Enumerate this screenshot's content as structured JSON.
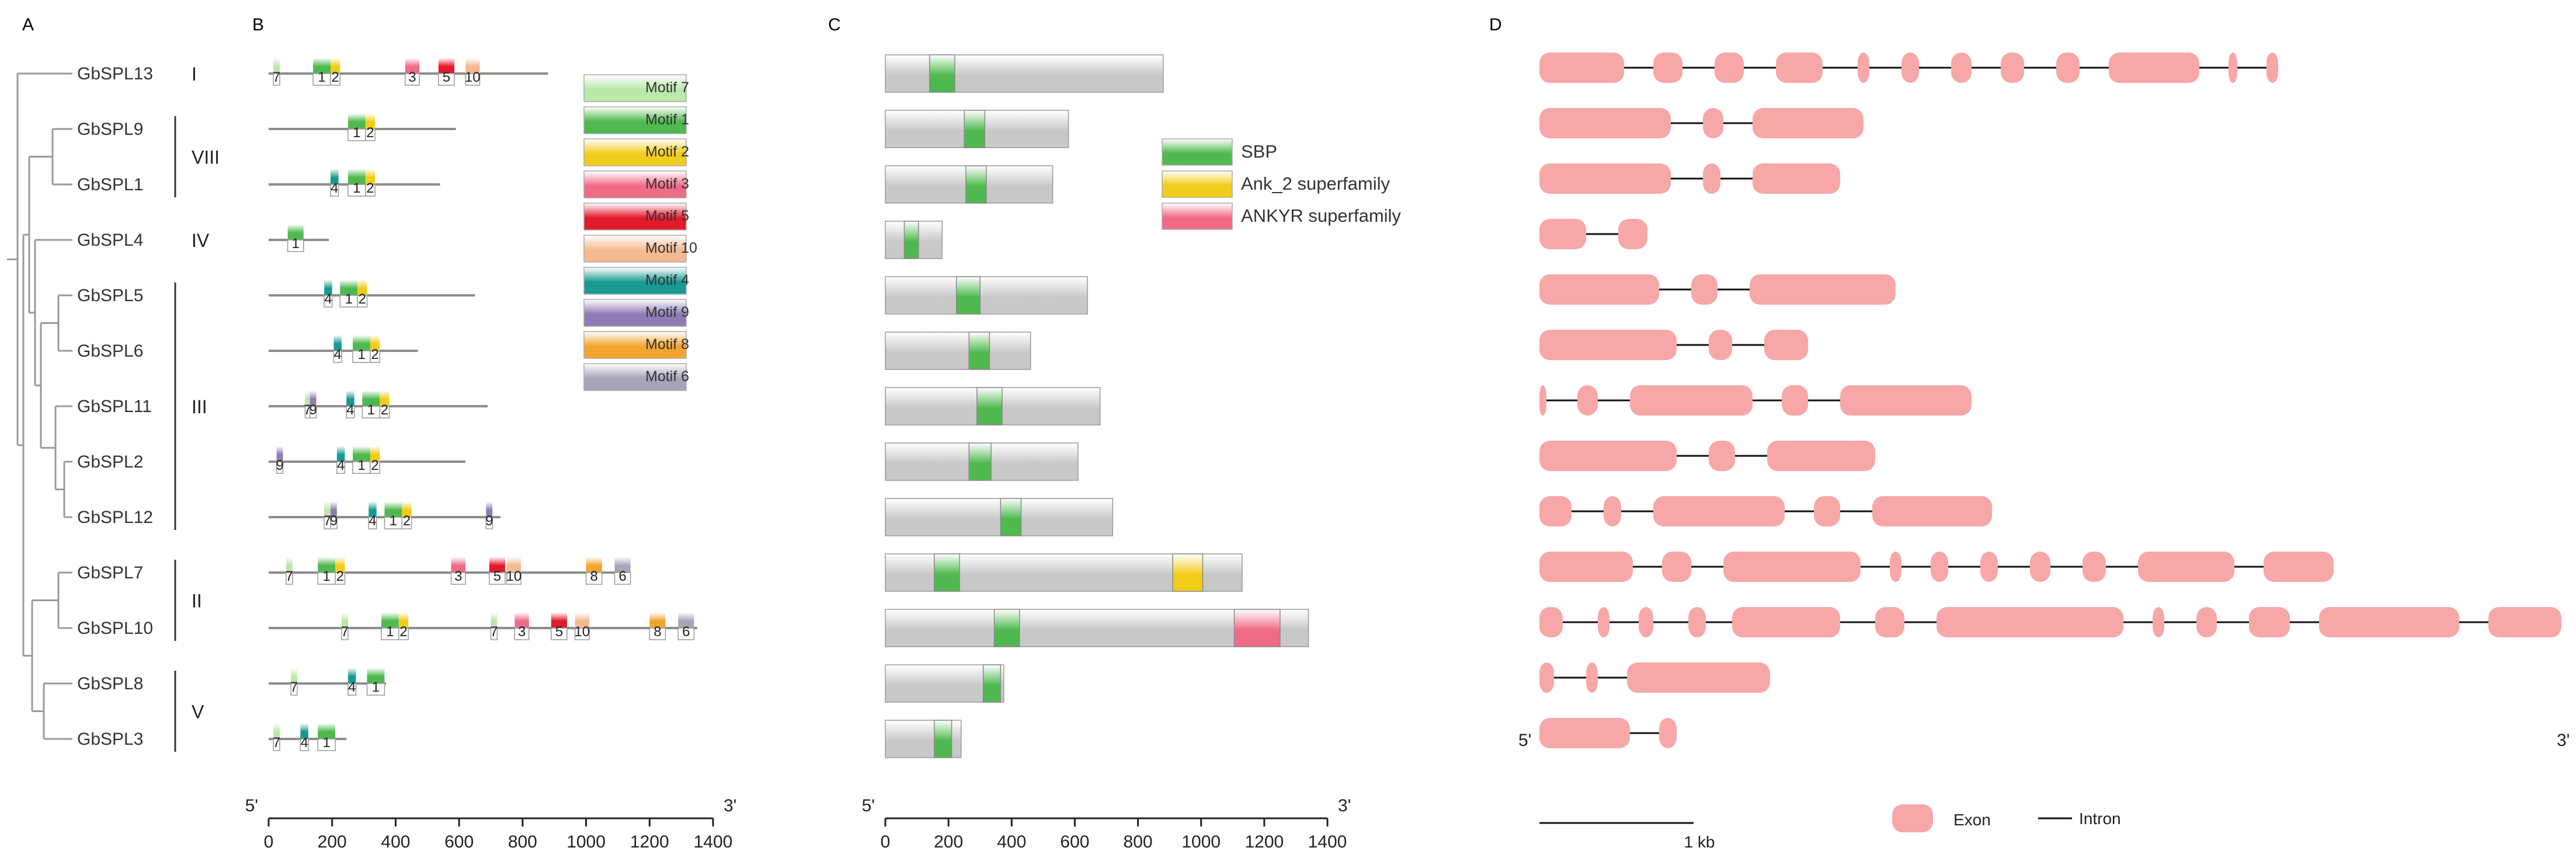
{
  "panels": {
    "a": "A",
    "b": "B",
    "c": "C",
    "d": "D"
  },
  "genes": [
    {
      "name": "GbSPL13",
      "len": 880,
      "motifs": [
        {
          "id": "7",
          "s": 15,
          "e": 35
        },
        {
          "id": "1",
          "s": 140,
          "e": 195
        },
        {
          "id": "2",
          "s": 195,
          "e": 225
        },
        {
          "id": "3",
          "s": 430,
          "e": 475
        },
        {
          "id": "5",
          "s": 535,
          "e": 585
        },
        {
          "id": "10",
          "s": 620,
          "e": 665
        }
      ],
      "domains": [
        {
          "t": "SBP",
          "s": 140,
          "e": 220
        }
      ],
      "prot_len": 880,
      "exons": [
        [
          0,
          145
        ],
        [
          195,
          245
        ],
        [
          300,
          350
        ],
        [
          405,
          485
        ],
        [
          545,
          565
        ],
        [
          620,
          650
        ],
        [
          705,
          740
        ],
        [
          790,
          830
        ],
        [
          885,
          925
        ],
        [
          975,
          1130
        ],
        [
          1180,
          1195
        ],
        [
          1245,
          1265
        ]
      ]
    },
    {
      "name": "GbSPL9",
      "len": 590,
      "motifs": [
        {
          "id": "1",
          "s": 250,
          "e": 305
        },
        {
          "id": "2",
          "s": 305,
          "e": 335
        }
      ],
      "domains": [
        {
          "t": "SBP",
          "s": 250,
          "e": 315
        }
      ],
      "prot_len": 580,
      "exons": [
        [
          0,
          225
        ],
        [
          280,
          315
        ],
        [
          365,
          555
        ]
      ]
    },
    {
      "name": "GbSPL1",
      "len": 540,
      "motifs": [
        {
          "id": "4",
          "s": 195,
          "e": 220
        },
        {
          "id": "1",
          "s": 250,
          "e": 305
        },
        {
          "id": "2",
          "s": 305,
          "e": 335
        }
      ],
      "domains": [
        {
          "t": "SBP",
          "s": 255,
          "e": 320
        }
      ],
      "prot_len": 530,
      "exons": [
        [
          0,
          225
        ],
        [
          280,
          310
        ],
        [
          365,
          515
        ]
      ]
    },
    {
      "name": "GbSPL4",
      "len": 190,
      "motifs": [
        {
          "id": "1",
          "s": 60,
          "e": 110
        }
      ],
      "domains": [
        {
          "t": "SBP",
          "s": 60,
          "e": 105
        }
      ],
      "prot_len": 180,
      "exons": [
        [
          0,
          80
        ],
        [
          135,
          185
        ]
      ]
    },
    {
      "name": "GbSPL5",
      "len": 650,
      "motifs": [
        {
          "id": "4",
          "s": 175,
          "e": 200
        },
        {
          "id": "1",
          "s": 225,
          "e": 280
        },
        {
          "id": "2",
          "s": 280,
          "e": 310
        }
      ],
      "domains": [
        {
          "t": "SBP",
          "s": 225,
          "e": 300
        }
      ],
      "prot_len": 640,
      "exons": [
        [
          0,
          205
        ],
        [
          260,
          305
        ],
        [
          360,
          610
        ]
      ]
    },
    {
      "name": "GbSPL6",
      "len": 470,
      "motifs": [
        {
          "id": "4",
          "s": 205,
          "e": 230
        },
        {
          "id": "1",
          "s": 265,
          "e": 320
        },
        {
          "id": "2",
          "s": 320,
          "e": 350
        }
      ],
      "domains": [
        {
          "t": "SBP",
          "s": 265,
          "e": 330
        }
      ],
      "prot_len": 460,
      "exons": [
        [
          0,
          235
        ],
        [
          290,
          330
        ],
        [
          385,
          460
        ]
      ]
    },
    {
      "name": "GbSPL11",
      "len": 690,
      "motifs": [
        {
          "id": "7",
          "s": 115,
          "e": 130
        },
        {
          "id": "9",
          "s": 130,
          "e": 150
        },
        {
          "id": "4",
          "s": 245,
          "e": 270
        },
        {
          "id": "1",
          "s": 295,
          "e": 350
        },
        {
          "id": "2",
          "s": 350,
          "e": 380
        }
      ],
      "domains": [
        {
          "t": "SBP",
          "s": 290,
          "e": 370
        }
      ],
      "prot_len": 680,
      "exons": [
        [
          0,
          12
        ],
        [
          65,
          100
        ],
        [
          155,
          365
        ],
        [
          415,
          460
        ],
        [
          515,
          740
        ]
      ]
    },
    {
      "name": "GbSPL2",
      "len": 620,
      "motifs": [
        {
          "id": "9",
          "s": 25,
          "e": 45
        },
        {
          "id": "4",
          "s": 215,
          "e": 240
        },
        {
          "id": "1",
          "s": 265,
          "e": 320
        },
        {
          "id": "2",
          "s": 320,
          "e": 350
        }
      ],
      "domains": [
        {
          "t": "SBP",
          "s": 265,
          "e": 335
        }
      ],
      "prot_len": 610,
      "exons": [
        [
          0,
          235
        ],
        [
          290,
          335
        ],
        [
          390,
          575
        ]
      ]
    },
    {
      "name": "GbSPL12",
      "len": 730,
      "motifs": [
        {
          "id": "7",
          "s": 175,
          "e": 195
        },
        {
          "id": "9",
          "s": 195,
          "e": 215
        },
        {
          "id": "4",
          "s": 315,
          "e": 340
        },
        {
          "id": "1",
          "s": 365,
          "e": 420
        },
        {
          "id": "2",
          "s": 420,
          "e": 450
        },
        {
          "id": "9",
          "s": 685,
          "e": 705
        }
      ],
      "domains": [
        {
          "t": "SBP",
          "s": 365,
          "e": 430
        }
      ],
      "prot_len": 720,
      "exons": [
        [
          0,
          55
        ],
        [
          110,
          140
        ],
        [
          195,
          420
        ],
        [
          470,
          515
        ],
        [
          570,
          775
        ]
      ]
    },
    {
      "name": "GbSPL7",
      "len": 1140,
      "motifs": [
        {
          "id": "7",
          "s": 55,
          "e": 75
        },
        {
          "id": "1",
          "s": 155,
          "e": 210
        },
        {
          "id": "2",
          "s": 210,
          "e": 240
        },
        {
          "id": "3",
          "s": 575,
          "e": 620
        },
        {
          "id": "5",
          "s": 695,
          "e": 745
        },
        {
          "id": "10",
          "s": 750,
          "e": 795
        },
        {
          "id": "8",
          "s": 1000,
          "e": 1050
        },
        {
          "id": "6",
          "s": 1090,
          "e": 1140
        }
      ],
      "domains": [
        {
          "t": "SBP",
          "s": 155,
          "e": 235
        },
        {
          "t": "Ank_2 superfamily",
          "s": 910,
          "e": 1005
        }
      ],
      "prot_len": 1130,
      "exons": [
        [
          0,
          160
        ],
        [
          210,
          260
        ],
        [
          315,
          550
        ],
        [
          600,
          620
        ],
        [
          670,
          700
        ],
        [
          755,
          785
        ],
        [
          840,
          875
        ],
        [
          930,
          970
        ],
        [
          1025,
          1190
        ],
        [
          1240,
          1360
        ]
      ]
    },
    {
      "name": "GbSPL10",
      "len": 1350,
      "motifs": [
        {
          "id": "7",
          "s": 230,
          "e": 250
        },
        {
          "id": "1",
          "s": 355,
          "e": 410
        },
        {
          "id": "2",
          "s": 410,
          "e": 440
        },
        {
          "id": "7",
          "s": 700,
          "e": 720
        },
        {
          "id": "3",
          "s": 775,
          "e": 820
        },
        {
          "id": "5",
          "s": 890,
          "e": 940
        },
        {
          "id": "10",
          "s": 965,
          "e": 1010
        },
        {
          "id": "8",
          "s": 1200,
          "e": 1250
        },
        {
          "id": "6",
          "s": 1290,
          "e": 1340
        }
      ],
      "domains": [
        {
          "t": "SBP",
          "s": 345,
          "e": 425
        },
        {
          "t": "ANKYR superfamily",
          "s": 1105,
          "e": 1250
        }
      ],
      "prot_len": 1340,
      "exons": [
        [
          0,
          40
        ],
        [
          100,
          120
        ],
        [
          170,
          195
        ],
        [
          255,
          285
        ],
        [
          330,
          515
        ],
        [
          575,
          625
        ],
        [
          680,
          1000
        ],
        [
          1050,
          1070
        ],
        [
          1125,
          1160
        ],
        [
          1215,
          1285
        ],
        [
          1335,
          1575
        ],
        [
          1625,
          1750
        ]
      ]
    },
    {
      "name": "GbSPL8",
      "len": 370,
      "motifs": [
        {
          "id": "7",
          "s": 70,
          "e": 90
        },
        {
          "id": "4",
          "s": 250,
          "e": 275
        },
        {
          "id": "1",
          "s": 310,
          "e": 365
        }
      ],
      "domains": [
        {
          "t": "SBP",
          "s": 310,
          "e": 365
        }
      ],
      "prot_len": 375,
      "exons": [
        [
          0,
          25
        ],
        [
          80,
          100
        ],
        [
          150,
          395
        ]
      ]
    },
    {
      "name": "GbSPL3",
      "len": 245,
      "motifs": [
        {
          "id": "7",
          "s": 15,
          "e": 35
        },
        {
          "id": "4",
          "s": 100,
          "e": 125
        },
        {
          "id": "1",
          "s": 155,
          "e": 210
        }
      ],
      "domains": [
        {
          "t": "SBP",
          "s": 155,
          "e": 210
        }
      ],
      "prot_len": 240,
      "exons": [
        [
          0,
          155
        ],
        [
          205,
          235
        ]
      ]
    }
  ],
  "groups": [
    {
      "label": "I",
      "from": 0,
      "to": 0
    },
    {
      "label": "VIII",
      "from": 1,
      "to": 2
    },
    {
      "label": "IV",
      "from": 3,
      "to": 3
    },
    {
      "label": "III",
      "from": 4,
      "to": 8
    },
    {
      "label": "II",
      "from": 9,
      "to": 10
    },
    {
      "label": "V",
      "from": 11,
      "to": 12
    }
  ],
  "motif_legend": [
    {
      "label": "Motif 7",
      "color": "#b9e8a9"
    },
    {
      "label": "Motif 1",
      "color": "#4fb94f"
    },
    {
      "label": "Motif 2",
      "color": "#f2cc1a"
    },
    {
      "label": "Motif 3",
      "color": "#f06b86"
    },
    {
      "label": "Motif 5",
      "color": "#e31a2c"
    },
    {
      "label": "Motif 10",
      "color": "#f5b991"
    },
    {
      "label": "Motif 4",
      "color": "#189a92"
    },
    {
      "label": "Motif 9",
      "color": "#8f7bb5"
    },
    {
      "label": "Motif 8",
      "color": "#f2a52e"
    },
    {
      "label": "Motif 6",
      "color": "#a7a3bb"
    }
  ],
  "motif_colors": {
    "7": "#b9e8a9",
    "1": "#4fb94f",
    "2": "#f2cc1a",
    "3": "#f06b86",
    "5": "#e31a2c",
    "10": "#f5b991",
    "4": "#189a92",
    "9": "#8f7bb5",
    "8": "#f2a52e",
    "6": "#a7a3bb"
  },
  "domain_legend": [
    {
      "label": "SBP",
      "color": "#4fb94f"
    },
    {
      "label": "Ank_2 superfamily",
      "color": "#f2cc1a"
    },
    {
      "label": "ANKYR superfamily",
      "color": "#f06b86"
    }
  ],
  "axis_b": {
    "ticks": [
      "0",
      "200",
      "400",
      "600",
      "800",
      "1000",
      "1200",
      "1400"
    ],
    "left": "5'",
    "right": "3'"
  },
  "axis_c": {
    "ticks": [
      "0",
      "200",
      "400",
      "600",
      "800",
      "1000",
      "1200",
      "1400"
    ],
    "left": "5'",
    "right": "3'"
  },
  "panel_d": {
    "left": "5'",
    "right": "3'",
    "scale_label": "1 kb",
    "exon_label": "Exon",
    "intron_label": "Intron",
    "exon_color": "#f7a7a7"
  }
}
